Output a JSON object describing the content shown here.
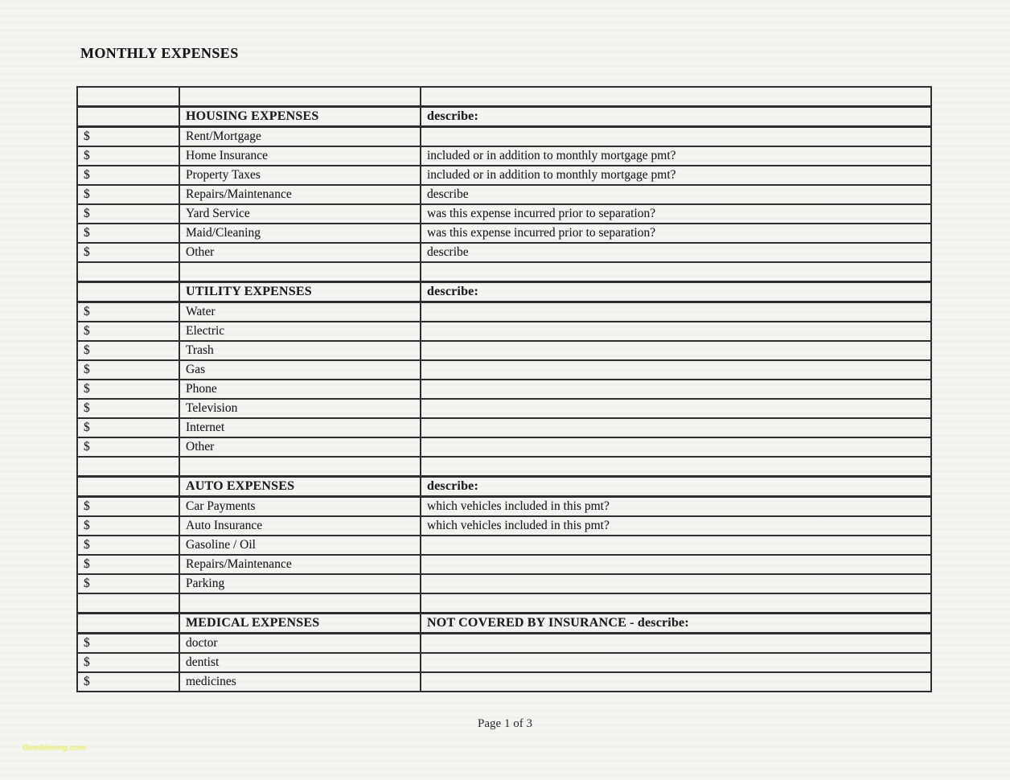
{
  "page": {
    "title": "MONTHLY EXPENSES",
    "footer": "Page 1 of 3",
    "watermark": "Gembloong.com"
  },
  "table": {
    "sections": [
      {
        "header": {
          "label": "HOUSING EXPENSES",
          "note": "describe:"
        },
        "rows": [
          {
            "currency": "$",
            "item": "Rent/Mortgage",
            "note": ""
          },
          {
            "currency": "$",
            "item": "Home Insurance",
            "note": "included or in addition to monthly mortgage pmt?"
          },
          {
            "currency": "$",
            "item": "Property Taxes",
            "note": "included or in addition to monthly mortgage pmt?"
          },
          {
            "currency": "$",
            "item": "Repairs/Maintenance",
            "note": "describe"
          },
          {
            "currency": "$",
            "item": "Yard Service",
            "note": "was this expense incurred prior to separation?"
          },
          {
            "currency": "$",
            "item": "Maid/Cleaning",
            "note": "was this expense incurred prior to separation?"
          },
          {
            "currency": "$",
            "item": "Other",
            "note": "describe"
          }
        ]
      },
      {
        "header": {
          "label": "UTILITY EXPENSES",
          "note": "describe:"
        },
        "rows": [
          {
            "currency": "$",
            "item": "Water",
            "note": ""
          },
          {
            "currency": "$",
            "item": "Electric",
            "note": ""
          },
          {
            "currency": "$",
            "item": "Trash",
            "note": ""
          },
          {
            "currency": "$",
            "item": "Gas",
            "note": ""
          },
          {
            "currency": "$",
            "item": "Phone",
            "note": ""
          },
          {
            "currency": "$",
            "item": "Television",
            "note": ""
          },
          {
            "currency": "$",
            "item": "Internet",
            "note": ""
          },
          {
            "currency": "$",
            "item": "Other",
            "note": ""
          }
        ]
      },
      {
        "header": {
          "label": "AUTO EXPENSES",
          "note": "describe:"
        },
        "rows": [
          {
            "currency": "$",
            "item": "Car Payments",
            "note": "which vehicles included in this pmt?"
          },
          {
            "currency": "$",
            "item": "Auto Insurance",
            "note": "which vehicles included in this pmt?"
          },
          {
            "currency": "$",
            "item": "Gasoline / Oil",
            "note": ""
          },
          {
            "currency": "$",
            "item": "Repairs/Maintenance",
            "note": ""
          },
          {
            "currency": "$",
            "item": "Parking",
            "note": ""
          }
        ]
      },
      {
        "header": {
          "label": "MEDICAL EXPENSES",
          "note": "NOT COVERED BY INSURANCE - describe:"
        },
        "rows": [
          {
            "currency": "$",
            "item": "doctor",
            "note": ""
          },
          {
            "currency": "$",
            "item": "dentist",
            "note": ""
          },
          {
            "currency": "$",
            "item": "medicines",
            "note": ""
          }
        ]
      }
    ]
  }
}
